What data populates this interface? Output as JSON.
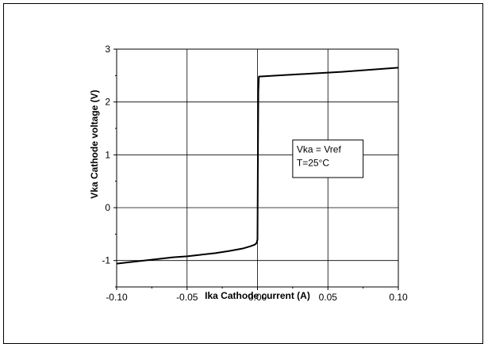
{
  "chart_data": {
    "type": "line",
    "title": "",
    "xlabel": "Ika Cathode current (A)",
    "ylabel": "Vka Cathode voltage (V)",
    "xlim": [
      -0.1,
      0.1
    ],
    "ylim": [
      -1.5,
      3
    ],
    "xticks": [
      -0.1,
      -0.05,
      0.0,
      0.05,
      0.1
    ],
    "xtick_labels": [
      "-0.10",
      "-0.05",
      "0.00",
      "0.05",
      "0.10"
    ],
    "yticks": [
      -1,
      0,
      1,
      2,
      3
    ],
    "ytick_labels": [
      "-1",
      "0",
      "1",
      "2",
      "3"
    ],
    "grid": true,
    "legend": "none",
    "annotation": {
      "lines": [
        "Vka = Vref",
        "T=25°C"
      ],
      "box_x": [
        0.025,
        0.075
      ],
      "box_y": [
        0.57,
        1.28
      ]
    },
    "series": [
      {
        "color": "#000000",
        "x": [
          -0.1,
          -0.09,
          -0.08,
          -0.07,
          -0.06,
          -0.05,
          -0.04,
          -0.03,
          -0.02,
          -0.01,
          -0.005,
          -0.002,
          -0.001,
          -0.0005,
          0.0,
          0.0003,
          0.0006,
          0.001,
          0.02,
          0.04,
          0.06,
          0.08,
          0.1
        ],
        "y": [
          -1.06,
          -1.03,
          -1.0,
          -0.97,
          -0.94,
          -0.92,
          -0.89,
          -0.86,
          -0.82,
          -0.77,
          -0.73,
          -0.7,
          -0.68,
          -0.66,
          -0.6,
          1.0,
          2.2,
          2.48,
          2.51,
          2.54,
          2.57,
          2.61,
          2.65
        ]
      }
    ]
  }
}
